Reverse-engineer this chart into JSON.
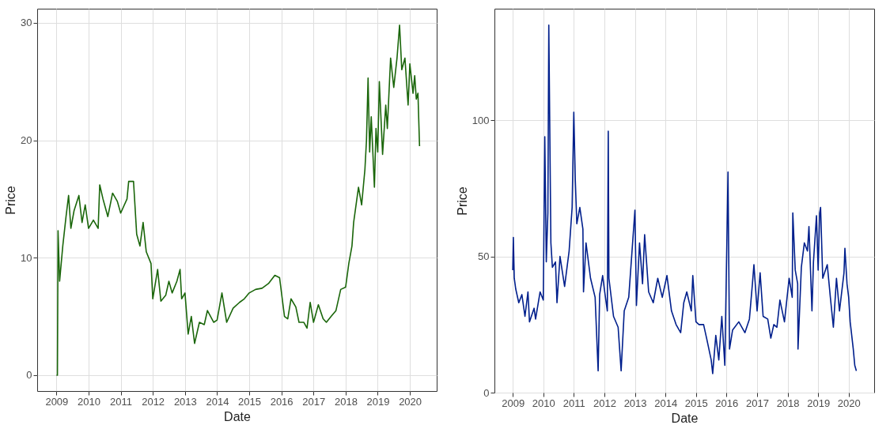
{
  "chart_data": [
    {
      "type": "line",
      "xlabel": "Date",
      "ylabel": "Price",
      "xlim": [
        "2008-05-27",
        "2020-11-01"
      ],
      "ylim": [
        -1.35,
        31.2
      ],
      "xticks": [
        "2009",
        "2010",
        "2011",
        "2012",
        "2013",
        "2014",
        "2015",
        "2016",
        "2017",
        "2018",
        "2019",
        "2020"
      ],
      "yticks": [
        0,
        10,
        20,
        30
      ],
      "grid": true,
      "x": [
        "2009-01-01",
        "2009-01-12",
        "2009-01-19",
        "2009-02-06",
        "2009-03-14",
        "2009-04-20",
        "2009-05-19",
        "2009-06-14",
        "2009-07-20",
        "2009-09-13",
        "2009-10-19",
        "2009-11-24",
        "2010-01-01",
        "2010-02-25",
        "2010-04-20",
        "2010-05-08",
        "2010-06-14",
        "2010-08-08",
        "2010-10-01",
        "2010-11-24",
        "2011-01-01",
        "2011-03-14",
        "2011-04-02",
        "2011-05-27",
        "2011-07-02",
        "2011-08-08",
        "2011-09-13",
        "2011-10-19",
        "2011-12-12",
        "2012-01-01",
        "2012-02-25",
        "2012-04-02",
        "2012-05-27",
        "2012-07-02",
        "2012-08-08",
        "2012-10-01",
        "2012-11-06",
        "2012-11-24",
        "2013-01-01",
        "2013-02-06",
        "2013-03-14",
        "2013-04-20",
        "2013-06-14",
        "2013-08-08",
        "2013-09-13",
        "2013-11-24",
        "2014-01-01",
        "2014-02-25",
        "2014-04-20",
        "2014-07-02",
        "2014-09-13",
        "2014-11-06",
        "2015-01-01",
        "2015-03-14",
        "2015-05-27",
        "2015-08-08",
        "2015-10-19",
        "2015-12-12",
        "2016-02-06",
        "2016-03-14",
        "2016-04-20",
        "2016-06-14",
        "2016-07-20",
        "2016-09-13",
        "2016-10-19",
        "2016-11-24",
        "2017-01-01",
        "2017-02-25",
        "2017-04-20",
        "2017-05-27",
        "2017-07-20",
        "2017-09-13",
        "2017-11-06",
        "2018-01-01",
        "2018-02-06",
        "2018-03-14",
        "2018-04-02",
        "2018-05-27",
        "2018-07-02",
        "2018-08-08",
        "2018-08-26",
        "2018-09-13",
        "2018-10-01",
        "2018-10-19",
        "2018-11-24",
        "2018-12-12",
        "2019-01-01",
        "2019-01-19",
        "2019-02-06",
        "2019-02-25",
        "2019-04-02",
        "2019-04-20",
        "2019-05-27",
        "2019-07-02",
        "2019-08-08",
        "2019-09-06",
        "2019-10-01",
        "2019-11-06",
        "2019-12-12",
        "2020-01-01",
        "2020-02-06",
        "2020-02-25",
        "2020-03-14",
        "2020-04-02",
        "2020-04-20"
      ],
      "series": [
        {
          "color": "#1a660a",
          "values": [
            0,
            0,
            12.3,
            8,
            11,
            13.5,
            15.3,
            12.5,
            14,
            15.3,
            13,
            14.5,
            12.5,
            13.2,
            12.5,
            16.2,
            15,
            13.5,
            15.5,
            14.8,
            13.8,
            15,
            16.5,
            16.5,
            12,
            11,
            13,
            10.5,
            9.5,
            6.5,
            9,
            6.3,
            6.8,
            8,
            7,
            8,
            9,
            6.5,
            7,
            3.5,
            5,
            2.7,
            4.5,
            4.3,
            5.5,
            4.5,
            4.7,
            7,
            4.5,
            5.7,
            6.2,
            6.5,
            7,
            7.3,
            7.4,
            7.8,
            8.5,
            8.3,
            5,
            4.8,
            6.5,
            5.8,
            4.5,
            4.5,
            4,
            6.2,
            4.5,
            6,
            4.8,
            4.5,
            5,
            5.5,
            7.3,
            7.5,
            9.5,
            11,
            13,
            16,
            14.5,
            17.5,
            20,
            25.3,
            19,
            22,
            16,
            21,
            19,
            25,
            22,
            18.8,
            23,
            21,
            27,
            24.5,
            27,
            29.8,
            26,
            27,
            23,
            26.5,
            24,
            25.5,
            23.5,
            24,
            19.5
          ]
        }
      ]
    },
    {
      "type": "line",
      "xlabel": "Date",
      "ylabel": "Price",
      "xlim": [
        "2008-05-27",
        "2020-11-01"
      ],
      "ylim": [
        0,
        141
      ],
      "xticks": [
        "2009",
        "2010",
        "2011",
        "2012",
        "2013",
        "2014",
        "2015",
        "2016",
        "2017",
        "2018",
        "2019",
        "2020"
      ],
      "yticks": [
        0,
        50,
        100
      ],
      "grid": true,
      "x": [
        "2009-01-01",
        "2009-01-08",
        "2009-01-19",
        "2009-02-06",
        "2009-03-14",
        "2009-04-20",
        "2009-05-27",
        "2009-07-02",
        "2009-07-20",
        "2009-09-13",
        "2009-10-01",
        "2009-11-24",
        "2010-01-01",
        "2010-01-19",
        "2010-02-06",
        "2010-02-25",
        "2010-03-08",
        "2010-04-02",
        "2010-04-20",
        "2010-05-27",
        "2010-06-14",
        "2010-07-20",
        "2010-09-13",
        "2010-11-06",
        "2010-12-12",
        "2011-01-01",
        "2011-01-19",
        "2011-02-06",
        "2011-03-14",
        "2011-04-20",
        "2011-04-27",
        "2011-05-27",
        "2011-07-20",
        "2011-09-13",
        "2011-10-19",
        "2011-11-06",
        "2011-12-12",
        "2012-01-01",
        "2012-02-06",
        "2012-02-17",
        "2012-02-25",
        "2012-04-20",
        "2012-06-14",
        "2012-07-20",
        "2012-08-26",
        "2012-10-19",
        "2013-01-01",
        "2013-01-19",
        "2013-02-25",
        "2013-04-02",
        "2013-04-27",
        "2013-06-14",
        "2013-08-08",
        "2013-10-01",
        "2013-11-24",
        "2014-01-19",
        "2014-03-14",
        "2014-05-08",
        "2014-07-02",
        "2014-08-08",
        "2014-09-13",
        "2014-11-06",
        "2014-11-24",
        "2015-01-01",
        "2015-02-06",
        "2015-04-02",
        "2015-05-08",
        "2015-07-02",
        "2015-07-20",
        "2015-08-26",
        "2015-10-01",
        "2015-11-06",
        "2015-12-12",
        "2016-01-19",
        "2016-02-06",
        "2016-03-14",
        "2016-05-27",
        "2016-08-08",
        "2016-10-01",
        "2016-11-06",
        "2016-11-24",
        "2017-01-01",
        "2017-02-06",
        "2017-03-14",
        "2017-05-08",
        "2017-06-14",
        "2017-07-20",
        "2017-08-26",
        "2017-10-01",
        "2017-11-24",
        "2018-01-19",
        "2018-02-25",
        "2018-03-04",
        "2018-04-02",
        "2018-05-01",
        "2018-05-05",
        "2018-06-14",
        "2018-07-20",
        "2018-08-26",
        "2018-09-13",
        "2018-10-19",
        "2018-11-06",
        "2018-12-12",
        "2019-01-01",
        "2019-01-19",
        "2019-01-30",
        "2019-02-25",
        "2019-04-20",
        "2019-05-27",
        "2019-07-02",
        "2019-08-08",
        "2019-09-13",
        "2019-11-06",
        "2019-11-17",
        "2019-12-12",
        "2020-01-01",
        "2020-01-19",
        "2020-02-25",
        "2020-03-14",
        "2020-04-02"
      ],
      "series": [
        {
          "color": "#001f8c",
          "values": [
            45,
            57,
            42,
            38,
            33,
            36,
            28,
            37,
            26,
            31,
            27,
            37,
            34,
            94,
            48,
            66,
            135,
            55,
            46,
            48,
            33,
            50,
            39,
            52,
            68,
            103,
            78,
            62,
            68,
            60,
            37,
            55,
            42,
            35,
            8,
            36,
            43,
            38,
            30,
            96,
            42,
            28,
            24,
            8,
            30,
            35,
            67,
            32,
            55,
            40,
            58,
            37,
            33,
            42,
            35,
            43,
            30,
            25,
            22,
            33,
            37,
            30,
            43,
            26,
            25,
            25,
            20,
            12,
            7,
            21,
            12,
            28,
            10,
            81,
            16,
            23,
            26,
            22,
            27,
            40,
            47,
            30,
            44,
            28,
            27,
            20,
            25,
            24,
            34,
            26,
            42,
            35,
            66,
            45,
            40,
            16,
            46,
            55,
            52,
            61,
            30,
            48,
            65,
            45,
            66,
            68,
            42,
            47,
            35,
            24,
            42,
            30,
            44,
            53,
            40,
            35,
            26,
            16,
            10,
            8
          ]
        }
      ]
    }
  ]
}
